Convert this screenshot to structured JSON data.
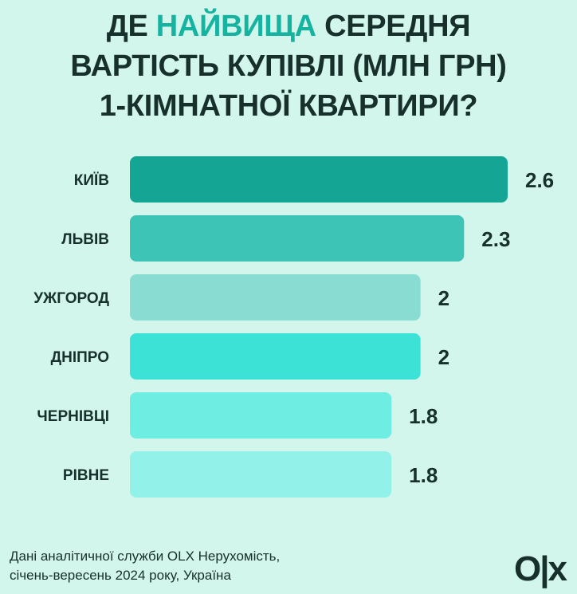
{
  "title": {
    "line1_a": "ДЕ ",
    "line1_highlight": "НАЙВИЩА",
    "line1_b": " СЕРЕДНЯ",
    "line2": "ВАРТІСТЬ КУПІВЛІ (МЛН ГРН)",
    "line3": "1-КІМНАТНОЇ КВАРТИРИ?"
  },
  "chart_data": {
    "type": "bar",
    "orientation": "horizontal",
    "title": "ДЕ НАЙВИЩА СЕРЕДНЯ ВАРТІСТЬ КУПІВЛІ (МЛН ГРН) 1-КІМНАТНОЇ КВАРТИРИ?",
    "categories": [
      "КИЇВ",
      "ЛЬВІВ",
      "УЖГОРОД",
      "ДНІПРО",
      "ЧЕРНІВЦІ",
      "РІВНЕ"
    ],
    "values": [
      2.6,
      2.3,
      2,
      2,
      1.8,
      1.8
    ],
    "value_labels": [
      "2.6",
      "2.3",
      "2",
      "2",
      "1.8",
      "1.8"
    ],
    "bar_colors": [
      "#14a595",
      "#3dc4b6",
      "#88dcd2",
      "#3ce2d6",
      "#6eede3",
      "#92f2ea"
    ],
    "xlim": [
      0,
      2.6
    ],
    "grid": false,
    "legend": "none"
  },
  "footer": {
    "line1": "Дані аналітичної служби OLX Нерухомість,",
    "line2": "січень-вересень 2024 року, Україна"
  },
  "logo": {
    "text": "O|x"
  }
}
